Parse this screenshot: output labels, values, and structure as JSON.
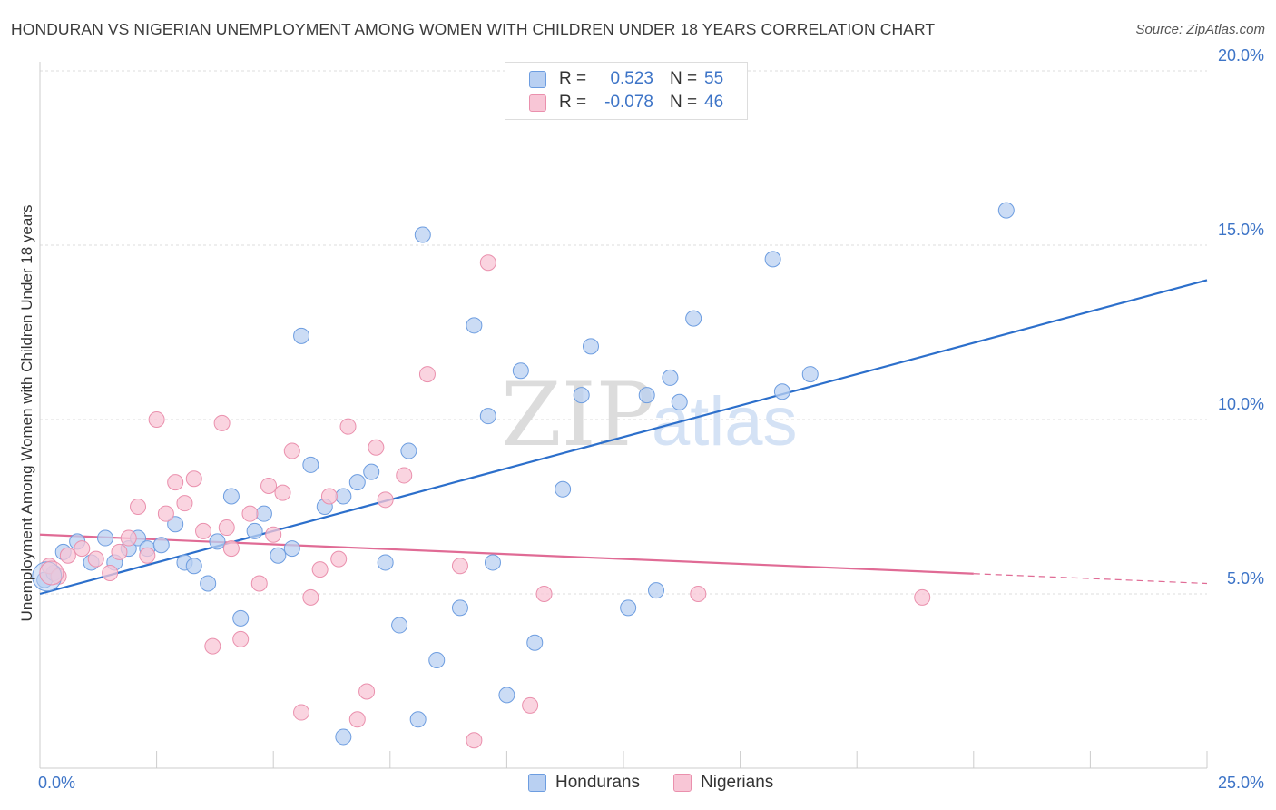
{
  "title": "HONDURAN VS NIGERIAN UNEMPLOYMENT AMONG WOMEN WITH CHILDREN UNDER 18 YEARS CORRELATION CHART",
  "source": "Source: ZipAtlas.com",
  "watermark": {
    "zip": "ZIP",
    "atlas": "atlas"
  },
  "legend_top": {
    "r_label": "R =",
    "n_label": "N =",
    "rows": [
      {
        "r": "0.523",
        "n": "55"
      },
      {
        "r": "-0.078",
        "n": "46"
      }
    ]
  },
  "colors": {
    "hondurans_fill": "#b9d0f2",
    "hondurans_stroke": "#6d9de0",
    "hondurans_line": "#2c6fcb",
    "nigerians_fill": "#f8c6d6",
    "nigerians_stroke": "#ea90ad",
    "nigerians_line": "#e06b95",
    "tick_text": "#3d74c7",
    "grid": "#dddddd"
  },
  "chart_data": {
    "type": "scatter",
    "title": "HONDURAN VS NIGERIAN UNEMPLOYMENT AMONG WOMEN WITH CHILDREN UNDER 18 YEARS CORRELATION CHART",
    "xlabel": "",
    "ylabel": "Unemployment Among Women with Children Under 18 years",
    "xlim": [
      0,
      25
    ],
    "ylim": [
      0,
      20
    ],
    "x_tick_labels": [
      "0.0%",
      "25.0%"
    ],
    "y_ticks": [
      5,
      10,
      15,
      20
    ],
    "y_tick_labels": [
      "5.0%",
      "10.0%",
      "15.0%",
      "20.0%"
    ],
    "grid": true,
    "legend_position": "bottom",
    "series": [
      {
        "name": "Hondurans",
        "r": 0.523,
        "n": 55,
        "trend": {
          "x": [
            0,
            25
          ],
          "y": [
            5.0,
            14.0
          ]
        },
        "points": [
          [
            0.1,
            5.4
          ],
          [
            0.3,
            5.6
          ],
          [
            0.5,
            6.2
          ],
          [
            0.8,
            6.5
          ],
          [
            1.1,
            5.9
          ],
          [
            1.4,
            6.6
          ],
          [
            1.6,
            5.9
          ],
          [
            1.9,
            6.3
          ],
          [
            2.1,
            6.6
          ],
          [
            2.3,
            6.3
          ],
          [
            2.6,
            6.4
          ],
          [
            2.9,
            7.0
          ],
          [
            3.1,
            5.9
          ],
          [
            3.3,
            5.8
          ],
          [
            3.6,
            5.3
          ],
          [
            3.8,
            6.5
          ],
          [
            4.1,
            7.8
          ],
          [
            4.3,
            4.3
          ],
          [
            4.6,
            6.8
          ],
          [
            4.8,
            7.3
          ],
          [
            5.1,
            6.1
          ],
          [
            5.4,
            6.3
          ],
          [
            5.6,
            12.4
          ],
          [
            5.8,
            8.7
          ],
          [
            6.1,
            7.5
          ],
          [
            6.5,
            7.8
          ],
          [
            6.8,
            8.2
          ],
          [
            7.1,
            8.5
          ],
          [
            7.4,
            5.9
          ],
          [
            7.7,
            4.1
          ],
          [
            7.9,
            9.1
          ],
          [
            8.1,
            1.4
          ],
          [
            8.2,
            15.3
          ],
          [
            8.5,
            3.1
          ],
          [
            9.0,
            4.6
          ],
          [
            9.3,
            12.7
          ],
          [
            9.6,
            10.1
          ],
          [
            9.7,
            5.9
          ],
          [
            10.0,
            2.1
          ],
          [
            10.3,
            11.4
          ],
          [
            10.6,
            3.6
          ],
          [
            11.2,
            8.0
          ],
          [
            11.6,
            10.7
          ],
          [
            11.8,
            12.1
          ],
          [
            12.6,
            4.6
          ],
          [
            13.0,
            10.7
          ],
          [
            13.2,
            5.1
          ],
          [
            13.5,
            11.2
          ],
          [
            13.7,
            10.5
          ],
          [
            14.0,
            12.9
          ],
          [
            15.7,
            14.6
          ],
          [
            15.9,
            10.8
          ],
          [
            16.5,
            11.3
          ],
          [
            20.7,
            16.0
          ],
          [
            6.5,
            0.9
          ]
        ]
      },
      {
        "name": "Nigerians",
        "r": -0.078,
        "n": 46,
        "trend": {
          "x": [
            0,
            25
          ],
          "y": [
            6.7,
            5.3
          ]
        },
        "points": [
          [
            0.2,
            5.8
          ],
          [
            0.4,
            5.5
          ],
          [
            0.6,
            6.1
          ],
          [
            0.9,
            6.3
          ],
          [
            1.2,
            6.0
          ],
          [
            1.5,
            5.6
          ],
          [
            1.7,
            6.2
          ],
          [
            1.9,
            6.6
          ],
          [
            2.1,
            7.5
          ],
          [
            2.3,
            6.1
          ],
          [
            2.5,
            10.0
          ],
          [
            2.7,
            7.3
          ],
          [
            2.9,
            8.2
          ],
          [
            3.1,
            7.6
          ],
          [
            3.3,
            8.3
          ],
          [
            3.5,
            6.8
          ],
          [
            3.7,
            3.5
          ],
          [
            3.9,
            9.9
          ],
          [
            4.1,
            6.3
          ],
          [
            4.3,
            3.7
          ],
          [
            4.5,
            7.3
          ],
          [
            4.7,
            5.3
          ],
          [
            4.9,
            8.1
          ],
          [
            5.0,
            6.7
          ],
          [
            5.2,
            7.9
          ],
          [
            5.4,
            9.1
          ],
          [
            5.6,
            1.6
          ],
          [
            5.8,
            4.9
          ],
          [
            6.0,
            5.7
          ],
          [
            6.2,
            7.8
          ],
          [
            6.4,
            6.0
          ],
          [
            6.6,
            9.8
          ],
          [
            6.8,
            1.4
          ],
          [
            7.0,
            2.2
          ],
          [
            7.2,
            9.2
          ],
          [
            7.4,
            7.7
          ],
          [
            7.8,
            8.4
          ],
          [
            8.3,
            11.3
          ],
          [
            9.0,
            5.8
          ],
          [
            9.3,
            0.8
          ],
          [
            9.6,
            14.5
          ],
          [
            10.5,
            1.8
          ],
          [
            10.8,
            5.0
          ],
          [
            14.1,
            5.0
          ],
          [
            18.9,
            4.9
          ],
          [
            4.0,
            6.9
          ]
        ]
      }
    ]
  },
  "legend_bottom": [
    "Hondurans",
    "Nigerians"
  ]
}
